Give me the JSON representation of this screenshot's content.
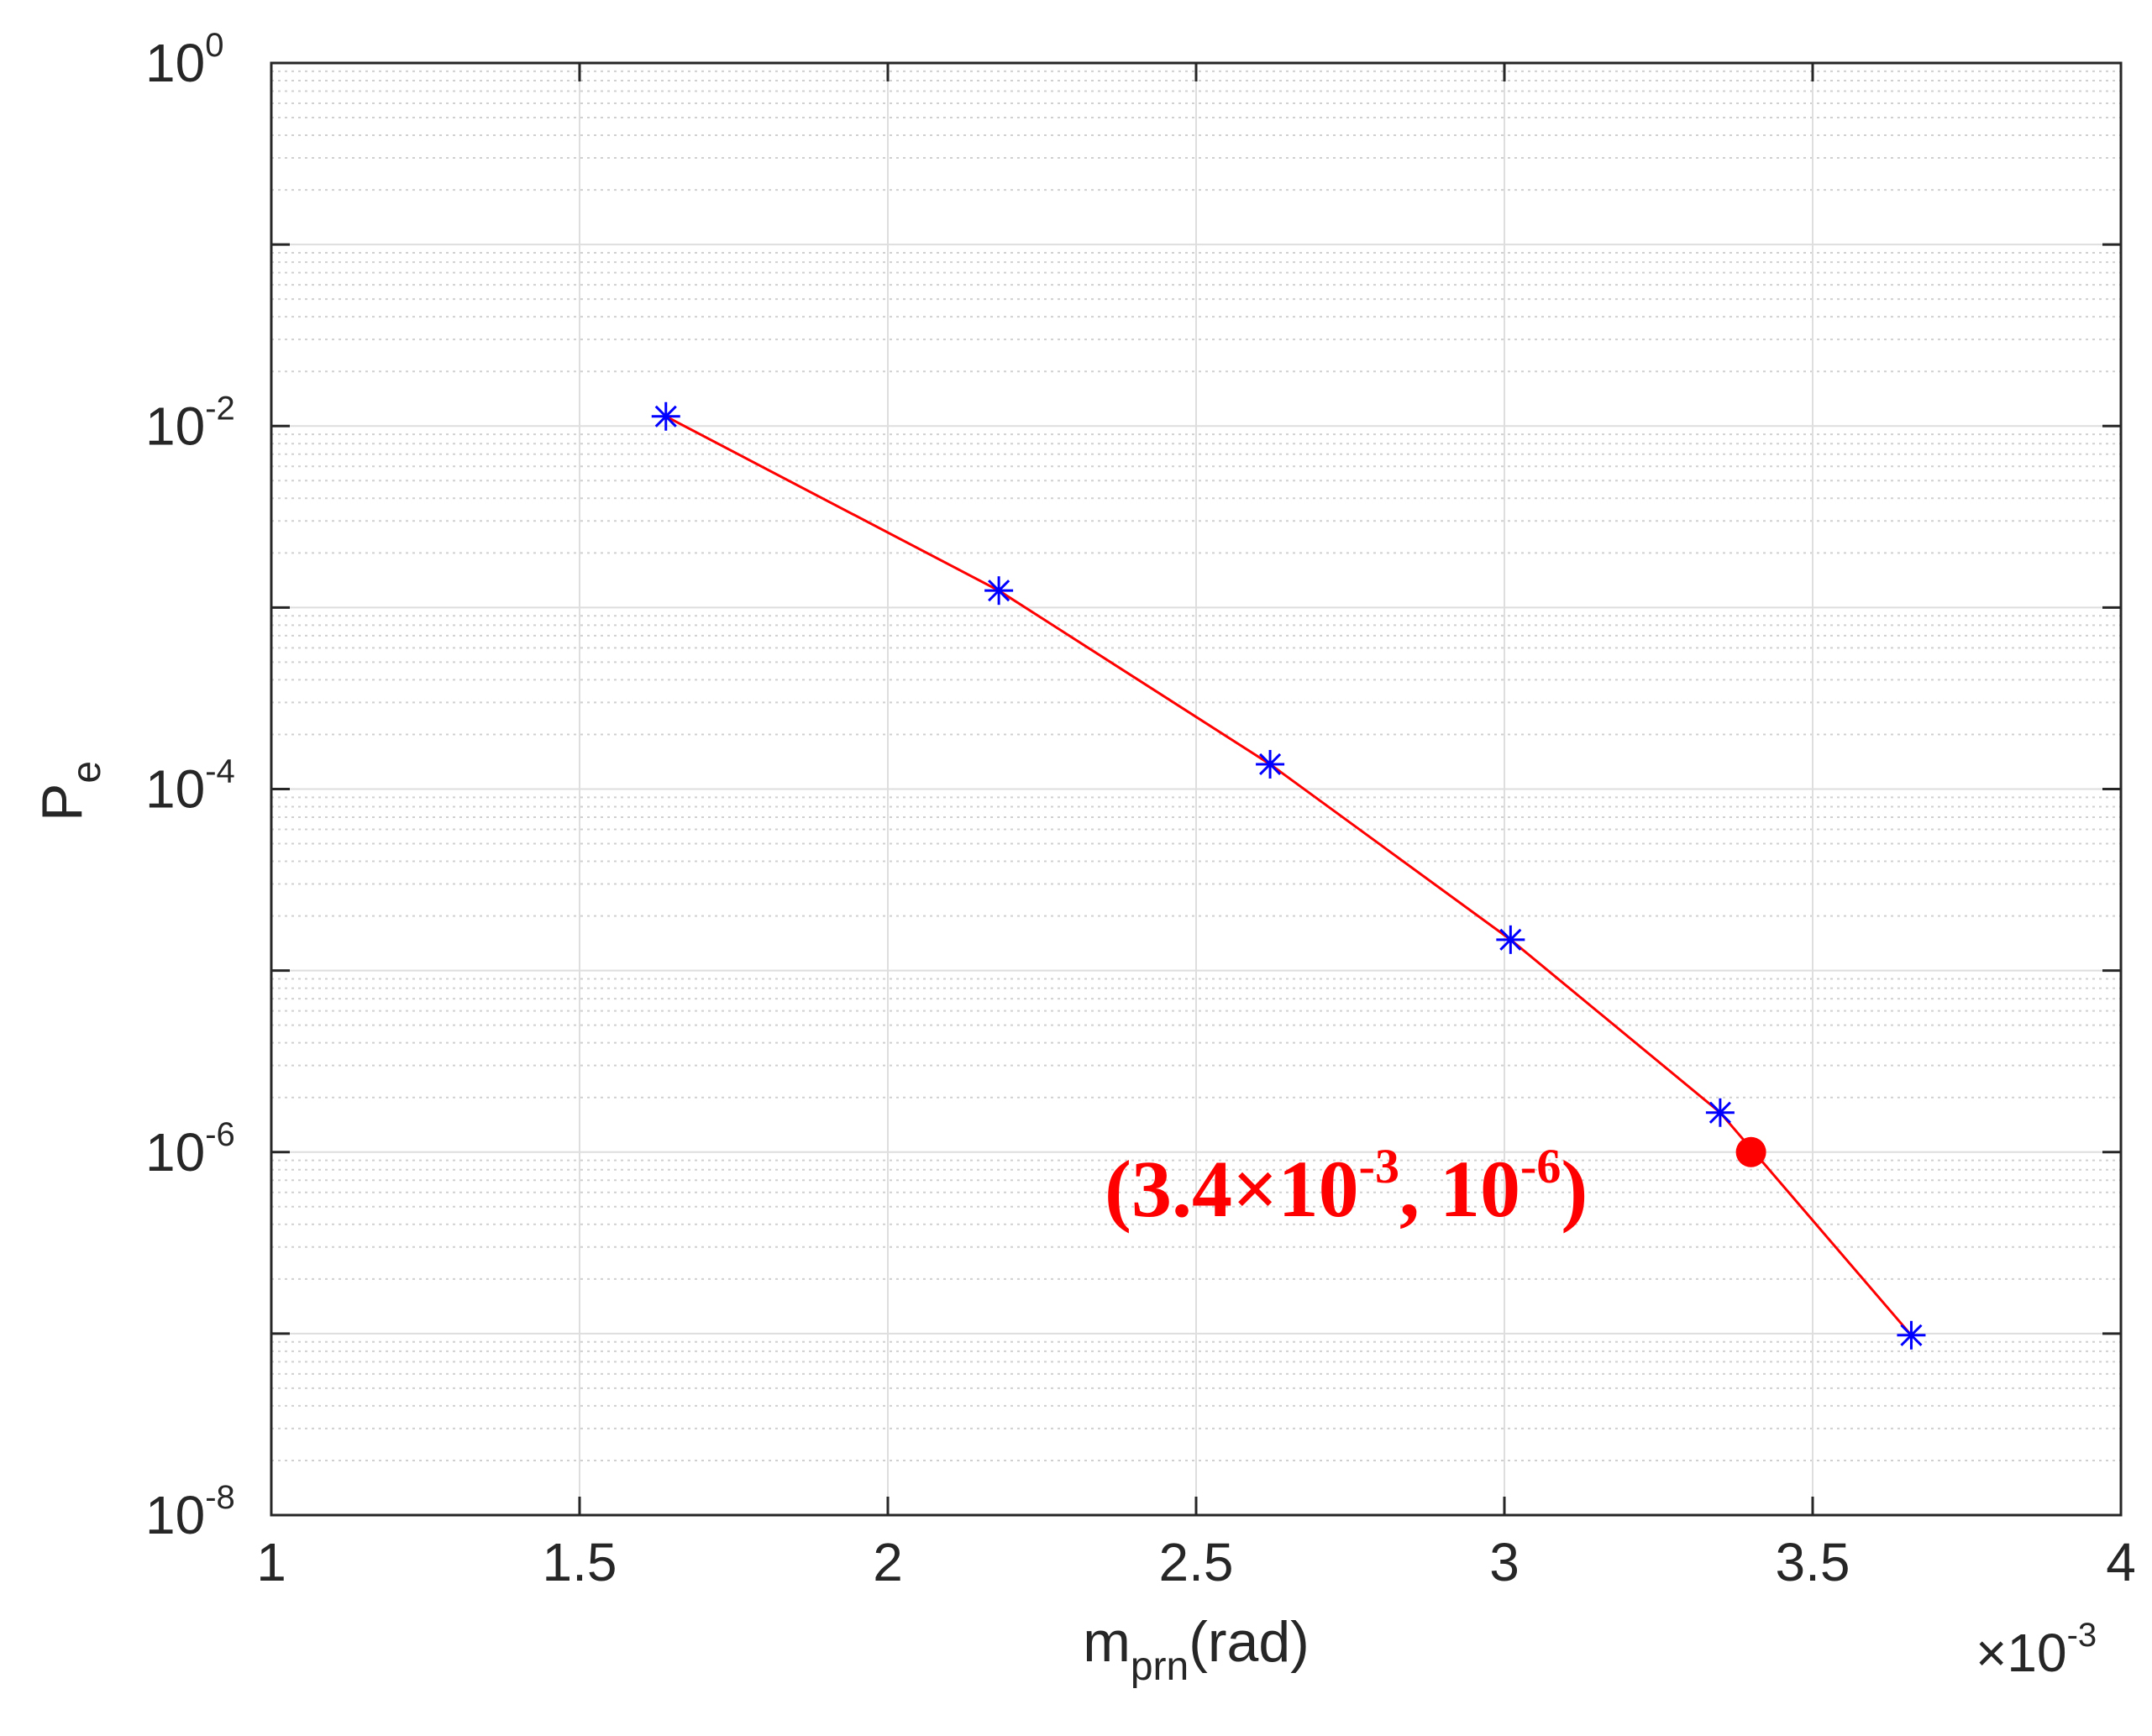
{
  "chart_data": {
    "type": "line",
    "xlabel": {
      "main": "m",
      "sub": "prn",
      "unit": "(rad)"
    },
    "ylabel": {
      "main": "P",
      "sub": "e"
    },
    "x_exponent": {
      "prefix": "×10",
      "power": "-3"
    },
    "xlim": [
      1,
      4
    ],
    "ylim": [
      1e-08,
      1
    ],
    "yscale": "log",
    "grid": true,
    "minor_grid_y": true,
    "x_ticks": [
      "1",
      "1.5",
      "2",
      "2.5",
      "3",
      "3.5",
      "4"
    ],
    "y_ticks": [
      {
        "base": "10",
        "exp": "0"
      },
      {
        "base": "10",
        "exp": "-2"
      },
      {
        "base": "10",
        "exp": "-4"
      },
      {
        "base": "10",
        "exp": "-6"
      },
      {
        "base": "10",
        "exp": "-8"
      }
    ],
    "series": [
      {
        "x": [
          1.64,
          2.18,
          2.62,
          3.01,
          3.35,
          3.66
        ],
        "y": [
          0.0113,
          0.00124,
          0.000137,
          1.48e-05,
          1.65e-06,
          9.8e-08
        ],
        "color": "#ff0000",
        "marker": "*",
        "marker_color": "#0000ff"
      }
    ],
    "highlight_point": {
      "x": 3.4,
      "y": 1e-06,
      "color": "#ff0000"
    },
    "annotation": {
      "parts": [
        "(3.4×10",
        "-3",
        ", 10",
        "-6",
        ")"
      ],
      "color": "#ff0000"
    }
  }
}
